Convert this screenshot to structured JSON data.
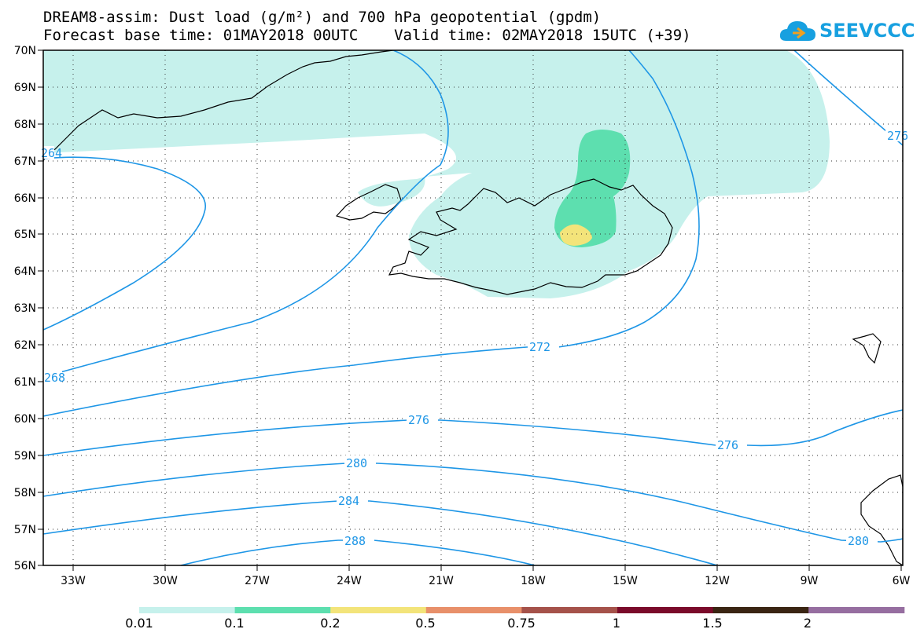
{
  "title": {
    "line1": "DREAM8-assim: Dust load (g/m²) and 700 hPa geopotential (gpdm)",
    "line2": "Forecast base time: 01MAY2018 00UTC    Valid time: 02MAY2018 15UTC (+39)"
  },
  "logo": {
    "text": "SEEVCCC",
    "icon": "cloud-icon",
    "color": "#17a0e0"
  },
  "axes": {
    "lat_labels": [
      "70N",
      "69N",
      "68N",
      "67N",
      "66N",
      "65N",
      "64N",
      "63N",
      "62N",
      "61N",
      "60N",
      "59N",
      "58N",
      "57N",
      "56N"
    ],
    "lon_labels": [
      "33W",
      "30W",
      "27W",
      "24W",
      "21W",
      "18W",
      "15W",
      "12W",
      "9W",
      "6W"
    ]
  },
  "contours": {
    "color": "#1e96e6",
    "labels": [
      "272",
      "276",
      "276",
      "280",
      "280",
      "284",
      "288",
      "268",
      "264",
      "276"
    ]
  },
  "colorbar": {
    "colors": [
      "#c6f1ec",
      "#5ddfaf",
      "#f3e47a",
      "#e8906a",
      "#a5524a",
      "#7a0a2a",
      "#3a2513",
      "#966ea0"
    ],
    "labels": [
      "0.01",
      "0.1",
      "0.2",
      "0.5",
      "0.75",
      "1",
      "1.5",
      "2"
    ]
  }
}
